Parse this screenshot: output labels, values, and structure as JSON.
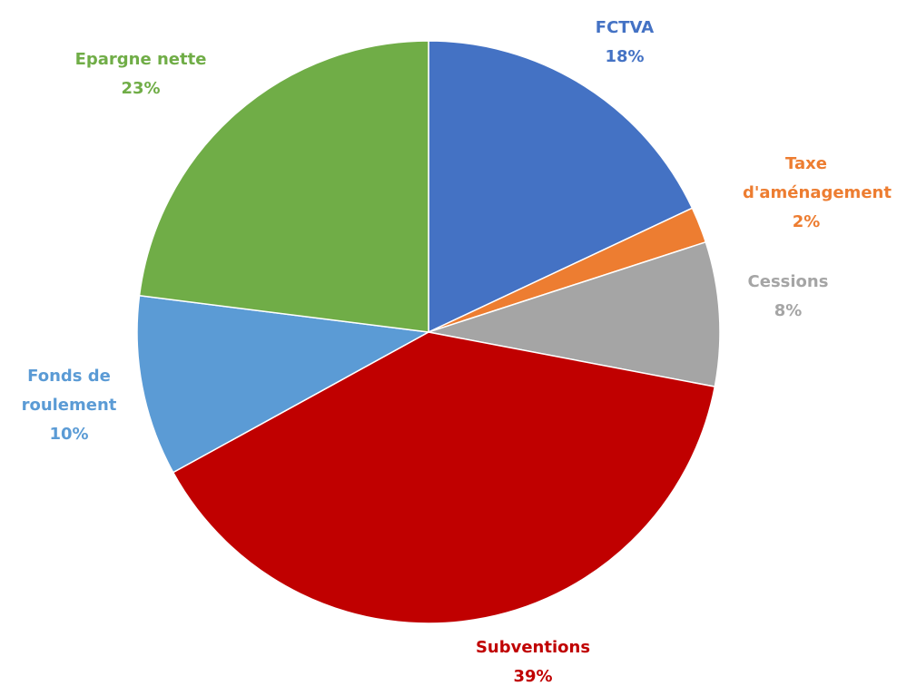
{
  "chart_data": {
    "type": "pie",
    "categories": [
      "FCTVA",
      "Taxe d'aménagement",
      "Cessions",
      "Subventions",
      "Fonds de roulement",
      "Epargne nette"
    ],
    "values": [
      18,
      2,
      8,
      39,
      10,
      23
    ],
    "value_labels": [
      "18%",
      "2%",
      "8%",
      "39%",
      "10%",
      "23%"
    ],
    "colors": [
      "#4472c4",
      "#ed7d31",
      "#a5a5a5",
      "#c00000",
      "#5b9bd5",
      "#70ad47"
    ]
  }
}
